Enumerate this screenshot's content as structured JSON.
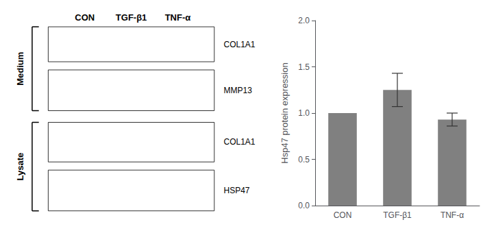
{
  "chart_data": {
    "type": "bar",
    "categories": [
      "CON",
      "TGF-β1",
      "TNF-α"
    ],
    "values": [
      1.0,
      1.25,
      0.93
    ],
    "errors": [
      0.0,
      0.18,
      0.07
    ],
    "color": "#808080",
    "ylabel": "Hsp47 protein expression",
    "ylim": [
      0.0,
      2.0
    ],
    "yticks": [
      {
        "value": 0,
        "label": "0.0"
      },
      0.5,
      {
        "value": 1,
        "label": "1.0"
      },
      1.5,
      {
        "value": 2,
        "label": "2.0"
      }
    ],
    "grid": false,
    "annotations": {
      "col_headers": [
        "CON",
        "TGF-β1",
        "TNF-α"
      ],
      "row_labels": [
        "COL1A1",
        "MMP13",
        "COL1A1",
        "HSP47"
      ],
      "group_labels": [
        "Medium",
        "Lysate"
      ]
    }
  }
}
